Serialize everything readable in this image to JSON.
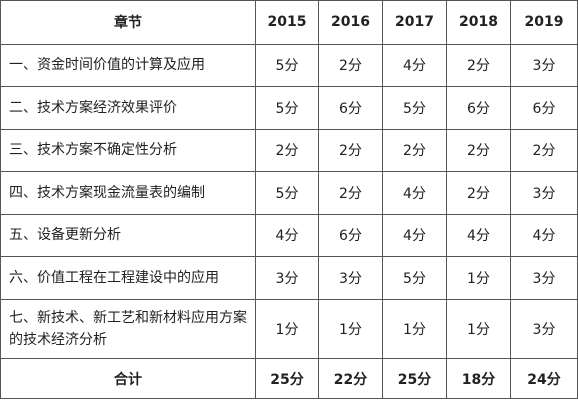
{
  "table": {
    "header": [
      "章节",
      "2015",
      "2016",
      "2017",
      "2018",
      "2019"
    ],
    "rows": [
      [
        "一、资金时间价值的计算及应用",
        "5分",
        "2分",
        "4分",
        "2分",
        "3分"
      ],
      [
        "二、技术方案经济效果评价",
        "5分",
        "6分",
        "5分",
        "6分",
        "6分"
      ],
      [
        "三、技术方案不确定性分析",
        "2分",
        "2分",
        "2分",
        "2分",
        "2分"
      ],
      [
        "四、技术方案现金流量表的编制",
        "5分",
        "2分",
        "4分",
        "2分",
        "3分"
      ],
      [
        "五、设备更新分析",
        "4分",
        "6分",
        "4分",
        "4分",
        "4分"
      ],
      [
        "六、价值工程在工程建设中的应用",
        "3分",
        "3分",
        "5分",
        "1分",
        "3分"
      ],
      [
        "七、新技术、新工艺和新材料应用方案的技术经济分析",
        "1分",
        "1分",
        "1分",
        "1分",
        "3分"
      ]
    ],
    "total": [
      "合计",
      "25分",
      "22分",
      "25分",
      "18分",
      "24分"
    ]
  }
}
